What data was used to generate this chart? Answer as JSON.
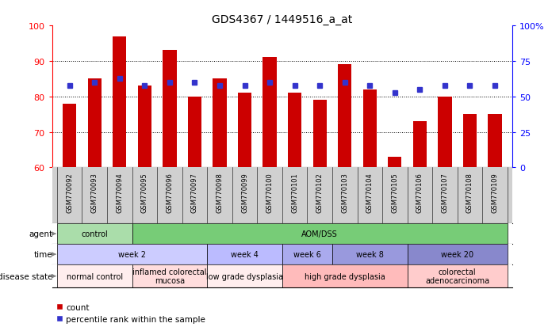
{
  "title": "GDS4367 / 1449516_a_at",
  "samples": [
    "GSM770092",
    "GSM770093",
    "GSM770094",
    "GSM770095",
    "GSM770096",
    "GSM770097",
    "GSM770098",
    "GSM770099",
    "GSM770100",
    "GSM770101",
    "GSM770102",
    "GSM770103",
    "GSM770104",
    "GSM770105",
    "GSM770106",
    "GSM770107",
    "GSM770108",
    "GSM770109"
  ],
  "counts": [
    78,
    85,
    97,
    83,
    93,
    80,
    85,
    81,
    91,
    81,
    79,
    89,
    82,
    63,
    73,
    80,
    75,
    75
  ],
  "percentiles": [
    83,
    84,
    85,
    83,
    84,
    84,
    83,
    83,
    84,
    83,
    83,
    84,
    83,
    81,
    82,
    83,
    83,
    83
  ],
  "ylim_left": [
    60,
    100
  ],
  "ylim_right": [
    0,
    100
  ],
  "bar_color": "#cc0000",
  "dot_color": "#3333cc",
  "agent_row": {
    "label": "agent",
    "groups": [
      {
        "text": "control",
        "start": 0,
        "end": 3,
        "color": "#aaddaa"
      },
      {
        "text": "AOM/DSS",
        "start": 3,
        "end": 18,
        "color": "#77cc77"
      }
    ]
  },
  "time_row": {
    "label": "time",
    "groups": [
      {
        "text": "week 2",
        "start": 0,
        "end": 6,
        "color": "#ccccff"
      },
      {
        "text": "week 4",
        "start": 6,
        "end": 9,
        "color": "#bbbbff"
      },
      {
        "text": "week 6",
        "start": 9,
        "end": 11,
        "color": "#aaaaee"
      },
      {
        "text": "week 8",
        "start": 11,
        "end": 14,
        "color": "#9999dd"
      },
      {
        "text": "week 20",
        "start": 14,
        "end": 18,
        "color": "#8888cc"
      }
    ]
  },
  "disease_row": {
    "label": "disease state",
    "groups": [
      {
        "text": "normal control",
        "start": 0,
        "end": 3,
        "color": "#ffeeee"
      },
      {
        "text": "inflamed colorectal\nmucosa",
        "start": 3,
        "end": 6,
        "color": "#ffdddd"
      },
      {
        "text": "low grade dysplasia",
        "start": 6,
        "end": 9,
        "color": "#ffeeee"
      },
      {
        "text": "high grade dysplasia",
        "start": 9,
        "end": 14,
        "color": "#ffbbbb"
      },
      {
        "text": "colorectal\nadenocarcinoma",
        "start": 14,
        "end": 18,
        "color": "#ffcccc"
      }
    ]
  }
}
